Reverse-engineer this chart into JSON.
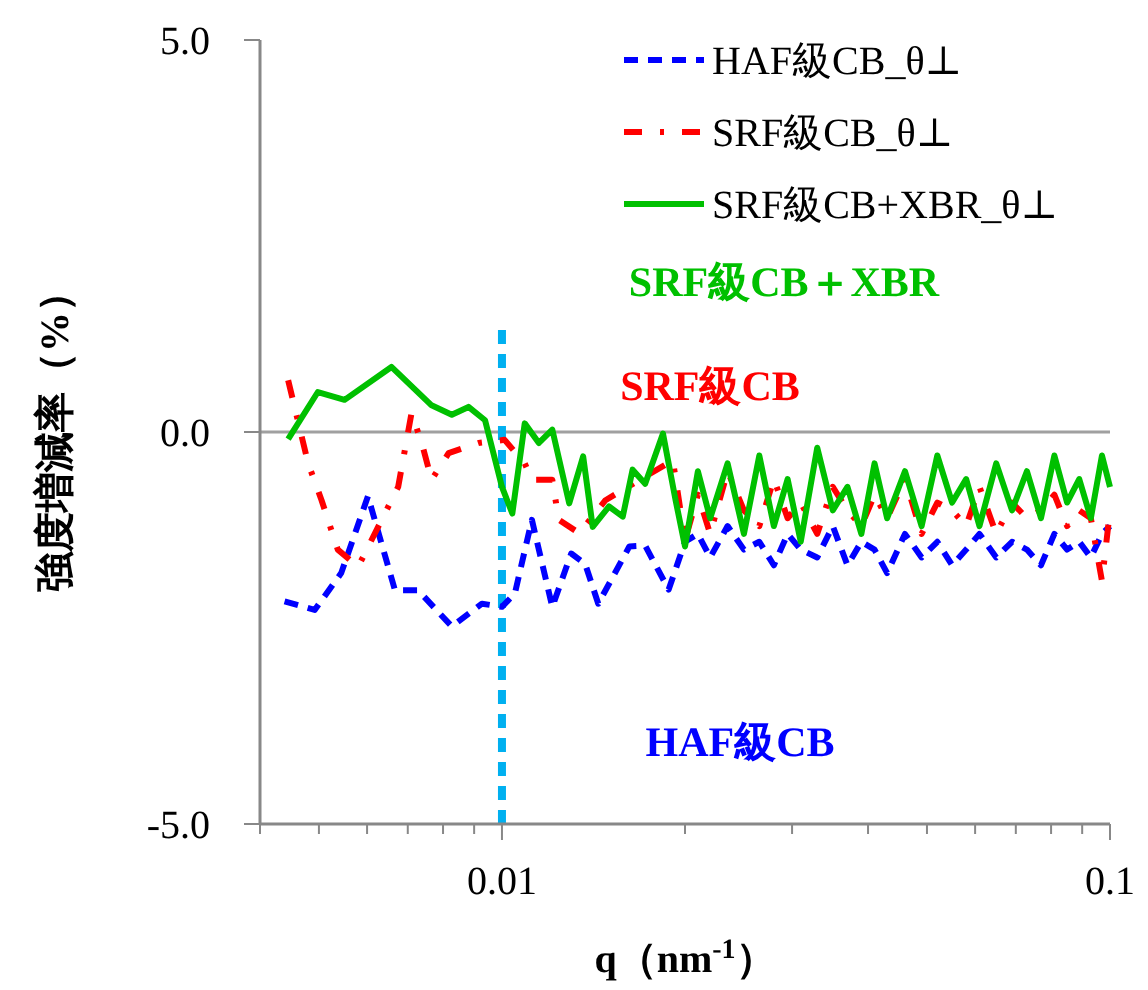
{
  "chart_data": {
    "type": "line",
    "xlabel": "q（nm$^{-1}$）",
    "ylabel": "強度増減率（%）",
    "log": "x",
    "xlim": [
      0.004,
      0.1
    ],
    "ylim": [
      -5,
      5
    ],
    "xticks": [
      {
        "value": 0.004,
        "label": null
      },
      {
        "value": 0.005,
        "label": null
      },
      {
        "value": 0.006,
        "label": null
      },
      {
        "value": 0.007,
        "label": null
      },
      {
        "value": 0.008,
        "label": null
      },
      {
        "value": 0.009,
        "label": null
      },
      0.01,
      {
        "value": 0.02,
        "label": null
      },
      {
        "value": 0.03,
        "label": null
      },
      {
        "value": 0.04,
        "label": null
      },
      {
        "value": 0.05,
        "label": null
      },
      {
        "value": 0.06,
        "label": null
      },
      {
        "value": 0.07,
        "label": null
      },
      {
        "value": 0.08,
        "label": null
      },
      {
        "value": 0.09,
        "label": null
      },
      0.1
    ],
    "yticks": [
      {
        "value": -5,
        "label": "-5.0"
      },
      {
        "value": 0,
        "label": "0.0"
      },
      {
        "value": 5,
        "label": "5.0"
      }
    ],
    "legend": "top right",
    "marker": "none",
    "ref_lines": [
      {
        "axis": "y",
        "value": 0,
        "color": "#a0a0a0",
        "line_style": "solid"
      },
      {
        "axis": "x",
        "value": 0.01,
        "color": "#00b0f0",
        "line_style": "dashed"
      }
    ],
    "annotations": [
      "SRF級CB＋XBR",
      "SRF級CB",
      "HAF級CB"
    ],
    "series": [
      {
        "name": "HAF級CB_θ⊥",
        "color": "#0000ff",
        "line_style": "dashed",
        "x": [
          0.00439,
          0.00492,
          0.00544,
          0.00602,
          0.00667,
          0.00728,
          0.00827,
          0.00927,
          0.01,
          0.0105,
          0.0112,
          0.0121,
          0.013,
          0.0137,
          0.0144,
          0.0162,
          0.0172,
          0.0188,
          0.02,
          0.021,
          0.022,
          0.0235,
          0.025,
          0.0265,
          0.028,
          0.0295,
          0.031,
          0.033,
          0.035,
          0.037,
          0.039,
          0.041,
          0.043,
          0.046,
          0.049,
          0.052,
          0.055,
          0.058,
          0.061,
          0.065,
          0.069,
          0.073,
          0.077,
          0.081,
          0.085,
          0.089,
          0.093,
          0.097,
          0.1
        ],
        "values": [
          -2.16,
          -2.27,
          -1.8,
          -0.82,
          -2.02,
          -2.02,
          -2.48,
          -2.19,
          -2.23,
          -2.06,
          -1.12,
          -2.23,
          -1.55,
          -1.68,
          -2.19,
          -1.46,
          -1.45,
          -2.01,
          -1.4,
          -1.3,
          -1.6,
          -1.2,
          -1.5,
          -1.4,
          -1.7,
          -1.3,
          -1.5,
          -1.6,
          -1.2,
          -1.7,
          -1.4,
          -1.5,
          -1.8,
          -1.3,
          -1.6,
          -1.4,
          -1.7,
          -1.5,
          -1.3,
          -1.6,
          -1.4,
          -1.5,
          -1.7,
          -1.3,
          -1.5,
          -1.4,
          -1.6,
          -1.3,
          -1.2
        ]
      },
      {
        "name": "SRF級CB_θ⊥",
        "color": "#ff0000",
        "line_style": "dotted",
        "x": [
          0.00445,
          0.0048,
          0.00505,
          0.00537,
          0.0058,
          0.00675,
          0.0071,
          0.00738,
          0.00766,
          0.00817,
          0.00915,
          0.0101,
          0.0109,
          0.0112,
          0.0121,
          0.0124,
          0.0134,
          0.0148,
          0.0191,
          0.02,
          0.021,
          0.022,
          0.0235,
          0.025,
          0.0265,
          0.028,
          0.0295,
          0.031,
          0.033,
          0.035,
          0.037,
          0.039,
          0.041,
          0.043,
          0.046,
          0.049,
          0.052,
          0.055,
          0.058,
          0.061,
          0.065,
          0.069,
          0.073,
          0.077,
          0.081,
          0.085,
          0.089,
          0.093,
          0.097,
          0.1
        ],
        "values": [
          0.66,
          -0.4,
          -0.87,
          -1.5,
          -1.72,
          -0.7,
          0.24,
          -0.14,
          -0.61,
          -0.27,
          -0.14,
          -0.1,
          -0.4,
          -0.61,
          -0.61,
          -1.12,
          -1.29,
          -0.87,
          -0.36,
          -1.38,
          -0.8,
          -1.3,
          -0.5,
          -1.0,
          -1.2,
          -0.6,
          -1.1,
          -0.9,
          -1.3,
          -0.7,
          -1.0,
          -1.2,
          -0.8,
          -1.1,
          -0.6,
          -1.3,
          -0.9,
          -1.0,
          -1.2,
          -0.7,
          -1.3,
          -0.9,
          -1.1,
          -1.0,
          -0.8,
          -1.2,
          -1.0,
          -1.1,
          -1.9,
          -1.0
        ]
      },
      {
        "name": "SRF級CB+XBR_θ⊥",
        "color": "#00c000",
        "line_style": "solid",
        "x": [
          0.00445,
          0.00498,
          0.00551,
          0.00658,
          0.00766,
          0.00827,
          0.00881,
          0.00938,
          0.01,
          0.0104,
          0.0109,
          0.0115,
          0.0121,
          0.0129,
          0.0136,
          0.0141,
          0.015,
          0.0158,
          0.0164,
          0.0172,
          0.0184,
          0.0193,
          0.02,
          0.021,
          0.022,
          0.0235,
          0.025,
          0.0265,
          0.028,
          0.0295,
          0.031,
          0.033,
          0.035,
          0.037,
          0.039,
          0.041,
          0.043,
          0.046,
          0.049,
          0.052,
          0.055,
          0.058,
          0.061,
          0.065,
          0.069,
          0.073,
          0.077,
          0.081,
          0.085,
          0.089,
          0.093,
          0.097,
          0.1
        ],
        "values": [
          -0.09,
          0.51,
          0.41,
          0.83,
          0.34,
          0.22,
          0.32,
          0.15,
          -0.7,
          -1.04,
          0.11,
          -0.14,
          0.03,
          -0.91,
          -0.31,
          -1.21,
          -0.95,
          -1.08,
          -0.48,
          -0.66,
          -0.02,
          -0.87,
          -1.46,
          -0.5,
          -1.1,
          -0.4,
          -1.3,
          -0.3,
          -1.2,
          -0.6,
          -1.4,
          -0.2,
          -1.0,
          -0.7,
          -1.3,
          -0.4,
          -1.1,
          -0.5,
          -1.2,
          -0.3,
          -0.9,
          -0.6,
          -1.2,
          -0.4,
          -1.0,
          -0.5,
          -1.1,
          -0.3,
          -0.9,
          -0.6,
          -1.1,
          -0.3,
          -0.7
        ]
      }
    ]
  }
}
